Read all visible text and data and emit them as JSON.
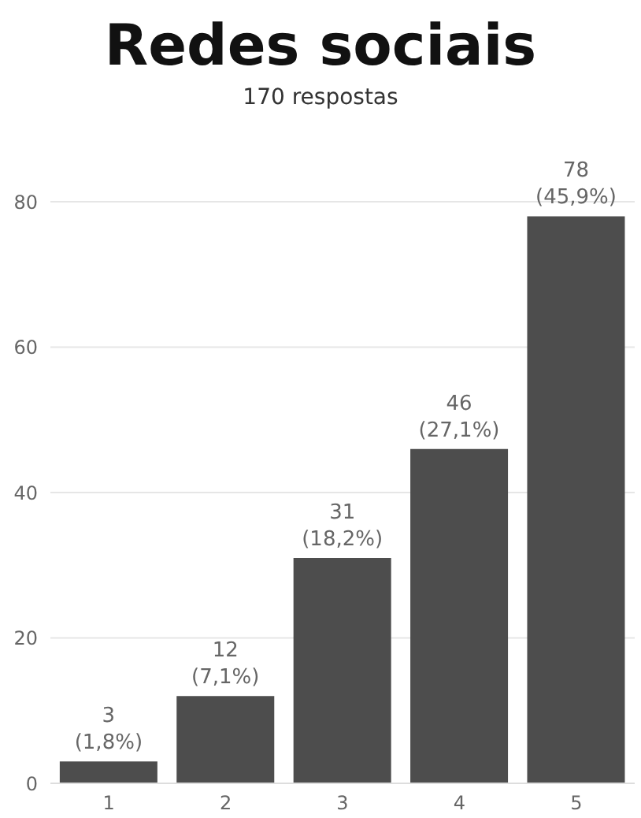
{
  "chart_data": {
    "type": "bar",
    "title": "Redes sociais",
    "subtitle": "170 respostas",
    "categories": [
      "1",
      "2",
      "3",
      "4",
      "5"
    ],
    "values": [
      3,
      12,
      31,
      46,
      78
    ],
    "value_labels": [
      "3\n(1,8%)",
      "12\n(7,1%)",
      "31\n(18,2%)",
      "46\n(27,1%)",
      "78\n(45,9%)"
    ],
    "color": "#4d4d4d",
    "ylim": [
      0,
      80
    ],
    "yticks": [
      0,
      20,
      40,
      60,
      80
    ],
    "grid": "y"
  }
}
